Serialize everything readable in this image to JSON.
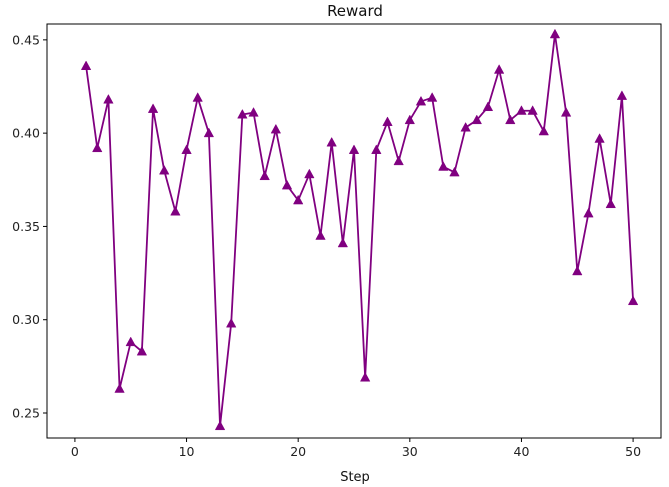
{
  "chart_data": {
    "type": "line",
    "title": "Reward",
    "xlabel": "Step",
    "ylabel": "",
    "xlim": [
      -2.5,
      52.5
    ],
    "ylim": [
      0.2366,
      0.4585
    ],
    "xticks": [
      0,
      10,
      20,
      30,
      40,
      50
    ],
    "xtick_labels": [
      "0",
      "10",
      "20",
      "30",
      "40",
      "50"
    ],
    "yticks": [
      0.25,
      0.3,
      0.35,
      0.4,
      0.45
    ],
    "ytick_labels": [
      "0.25",
      "0.30",
      "0.35",
      "0.40",
      "0.45"
    ],
    "grid": false,
    "marker": "triangle-up",
    "color": "#800080",
    "series": [
      {
        "x": [
          1,
          2,
          3,
          4,
          5,
          6,
          7,
          8,
          9,
          10,
          11,
          12,
          13,
          14,
          15,
          16,
          17,
          18,
          19,
          20,
          21,
          22,
          23,
          24,
          25,
          26,
          27,
          28,
          29,
          30,
          31,
          32,
          33,
          34,
          35,
          36,
          37,
          38,
          39,
          40,
          41,
          42,
          43,
          44,
          45,
          46,
          47,
          48,
          49,
          50
        ],
        "values": [
          0.436,
          0.392,
          0.418,
          0.263,
          0.288,
          0.283,
          0.413,
          0.38,
          0.358,
          0.391,
          0.419,
          0.4,
          0.243,
          0.298,
          0.41,
          0.411,
          0.377,
          0.402,
          0.372,
          0.364,
          0.378,
          0.345,
          0.395,
          0.341,
          0.391,
          0.269,
          0.391,
          0.406,
          0.385,
          0.407,
          0.417,
          0.419,
          0.382,
          0.379,
          0.403,
          0.407,
          0.414,
          0.434,
          0.407,
          0.412,
          0.412,
          0.401,
          0.453,
          0.411,
          0.326,
          0.357,
          0.397,
          0.362,
          0.42,
          0.31
        ]
      }
    ]
  }
}
